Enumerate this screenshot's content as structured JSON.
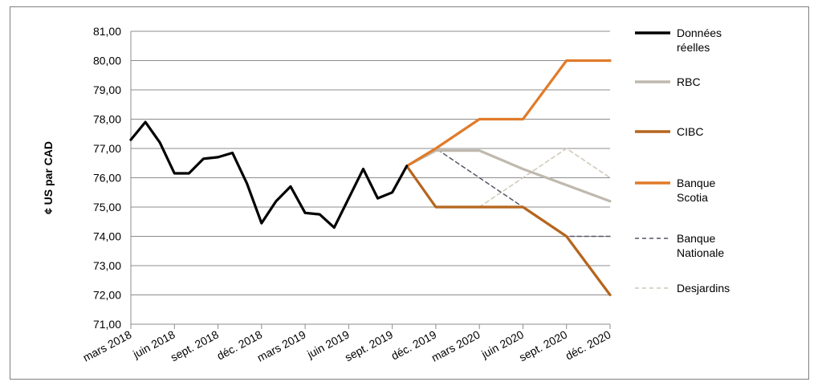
{
  "chart_data": {
    "type": "line",
    "ylabel": "¢ US par CAD",
    "ylim": [
      71,
      81
    ],
    "y_tick_labels": [
      "71,00",
      "72,00",
      "73,00",
      "74,00",
      "75,00",
      "76,00",
      "77,00",
      "78,00",
      "79,00",
      "80,00",
      "81,00"
    ],
    "x_range": [
      0,
      33
    ],
    "x_ticks": [
      {
        "x": 0,
        "label": "mars 2018"
      },
      {
        "x": 3,
        "label": "juin 2018"
      },
      {
        "x": 6,
        "label": "sept. 2018"
      },
      {
        "x": 9,
        "label": "déc. 2018"
      },
      {
        "x": 12,
        "label": "mars 2019"
      },
      {
        "x": 15,
        "label": "juin 2019"
      },
      {
        "x": 18,
        "label": "sept. 2019"
      },
      {
        "x": 21,
        "label": "déc. 2019"
      },
      {
        "x": 24,
        "label": "mars 2020"
      },
      {
        "x": 27,
        "label": "juin 2020"
      },
      {
        "x": 30,
        "label": "sept. 2020"
      },
      {
        "x": 33,
        "label": "déc. 2020"
      }
    ],
    "grid": true,
    "legend_position": "right",
    "series": [
      {
        "name": "Données réelles",
        "color": "#000000",
        "style": "solid",
        "points": [
          [
            0,
            77.3
          ],
          [
            1,
            77.9
          ],
          [
            2,
            77.2
          ],
          [
            3,
            76.15
          ],
          [
            4,
            76.15
          ],
          [
            5,
            76.65
          ],
          [
            6,
            76.7
          ],
          [
            7,
            76.85
          ],
          [
            8,
            75.8
          ],
          [
            9,
            74.45
          ],
          [
            10,
            75.2
          ],
          [
            11,
            75.7
          ],
          [
            12,
            74.8
          ],
          [
            13,
            74.75
          ],
          [
            14,
            74.3
          ],
          [
            15,
            75.3
          ],
          [
            16,
            76.3
          ],
          [
            17,
            75.3
          ],
          [
            18,
            75.5
          ],
          [
            19,
            76.4
          ]
        ]
      },
      {
        "name": "RBC",
        "color": "#bfb9ae",
        "style": "solid",
        "points": [
          [
            19,
            76.4
          ],
          [
            21,
            76.93
          ],
          [
            24,
            76.93
          ],
          [
            27,
            76.3
          ],
          [
            30,
            75.75
          ],
          [
            33,
            75.2
          ]
        ]
      },
      {
        "name": "CIBC",
        "color": "#b5651d",
        "style": "solid",
        "points": [
          [
            19,
            76.4
          ],
          [
            21,
            75.0
          ],
          [
            24,
            75.0
          ],
          [
            27,
            75.0
          ],
          [
            30,
            74.0
          ],
          [
            33,
            72.0
          ]
        ]
      },
      {
        "name": "Banque Scotia",
        "color": "#e07b2a",
        "style": "solid",
        "points": [
          [
            19,
            76.4
          ],
          [
            21,
            77.0
          ],
          [
            24,
            78.0
          ],
          [
            27,
            78.0
          ],
          [
            30,
            80.0
          ],
          [
            33,
            80.0
          ]
        ]
      },
      {
        "name": "Banque Nationale",
        "color": "#555566",
        "style": "dashed",
        "points": [
          [
            19,
            76.4
          ],
          [
            21,
            77.0
          ],
          [
            24,
            76.0
          ],
          [
            27,
            75.0
          ],
          [
            30,
            74.0
          ],
          [
            33,
            74.0
          ]
        ]
      },
      {
        "name": "Desjardins",
        "color": "#cfc7b8",
        "style": "dashed",
        "points": [
          [
            19,
            76.4
          ],
          [
            21,
            75.0
          ],
          [
            24,
            75.0
          ],
          [
            27,
            76.0
          ],
          [
            30,
            77.0
          ],
          [
            33,
            76.0
          ]
        ]
      }
    ]
  },
  "legend": [
    {
      "lines": [
        "Données",
        "réelles"
      ],
      "color": "#000000",
      "style": "solid"
    },
    {
      "lines": [
        "RBC"
      ],
      "color": "#bfb9ae",
      "style": "solid"
    },
    {
      "lines": [
        "CIBC"
      ],
      "color": "#b5651d",
      "style": "solid"
    },
    {
      "lines": [
        "Banque",
        "Scotia"
      ],
      "color": "#e07b2a",
      "style": "solid"
    },
    {
      "lines": [
        "Banque",
        "Nationale"
      ],
      "color": "#555566",
      "style": "dashed"
    },
    {
      "lines": [
        "Desjardins"
      ],
      "color": "#cfc7b8",
      "style": "dashed"
    }
  ]
}
